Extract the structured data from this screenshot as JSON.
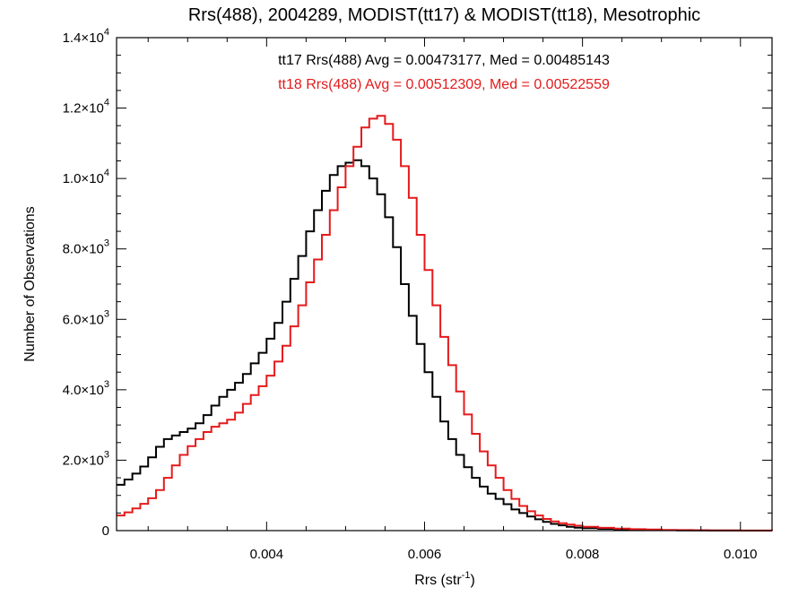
{
  "chart_data": {
    "type": "line",
    "title": "Rrs(488), 2004289, MODIST(tt17) & MODIST(tt18), Mesotrophic",
    "xlabel": "Rrs (str",
    "xlabel_sup": "-1",
    "xlabel_suffix": ")",
    "ylabel": "Number of Observations",
    "xlim": [
      0.0021,
      0.0104
    ],
    "ylim": [
      0,
      14000
    ],
    "grid": false,
    "x_ticks": [
      {
        "value": 0.004,
        "label": "0.004"
      },
      {
        "value": 0.006,
        "label": "0.006"
      },
      {
        "value": 0.008,
        "label": "0.008"
      },
      {
        "value": 0.01,
        "label": "0.010"
      }
    ],
    "y_ticks": [
      {
        "value": 0,
        "mant": "0",
        "exp": ""
      },
      {
        "value": 2000,
        "mant": "2.0×10",
        "exp": "3"
      },
      {
        "value": 4000,
        "mant": "4.0×10",
        "exp": "3"
      },
      {
        "value": 6000,
        "mant": "6.0×10",
        "exp": "3"
      },
      {
        "value": 8000,
        "mant": "8.0×10",
        "exp": "3"
      },
      {
        "value": 10000,
        "mant": "1.0×10",
        "exp": "4"
      },
      {
        "value": 12000,
        "mant": "1.2×10",
        "exp": "4"
      },
      {
        "value": 14000,
        "mant": "1.4×10",
        "exp": "4"
      }
    ],
    "annotations": [
      {
        "text": "tt17 Rrs(488) Avg = 0.00473177, Med = 0.00485143",
        "color": "#000000"
      },
      {
        "text": "tt18 Rrs(488) Avg = 0.00512309, Med = 0.00522559",
        "color": "#e41a1c"
      }
    ],
    "series": [
      {
        "color": "#000000",
        "x": [
          0.0021,
          0.0022,
          0.0023,
          0.0024,
          0.0025,
          0.0026,
          0.0027,
          0.0028,
          0.0029,
          0.003,
          0.0031,
          0.0032,
          0.0033,
          0.0034,
          0.0035,
          0.0036,
          0.0037,
          0.0038,
          0.0039,
          0.004,
          0.0041,
          0.0042,
          0.0043,
          0.0044,
          0.0045,
          0.0046,
          0.0047,
          0.0048,
          0.0049,
          0.005,
          0.0051,
          0.0052,
          0.0053,
          0.0054,
          0.0055,
          0.0056,
          0.0057,
          0.0058,
          0.0059,
          0.006,
          0.0061,
          0.0062,
          0.0063,
          0.0064,
          0.0065,
          0.0066,
          0.0067,
          0.0068,
          0.0069,
          0.007,
          0.0071,
          0.0072,
          0.0073,
          0.0074,
          0.0075,
          0.0076,
          0.0077,
          0.0078,
          0.0079,
          0.008,
          0.0082,
          0.0084,
          0.0086,
          0.0088,
          0.009,
          0.0092,
          0.0094,
          0.0096,
          0.0098,
          0.01,
          0.0102,
          0.0104
        ],
        "y": [
          1300,
          1450,
          1620,
          1820,
          2080,
          2380,
          2600,
          2700,
          2800,
          2900,
          3050,
          3280,
          3550,
          3800,
          4000,
          4200,
          4450,
          4750,
          5050,
          5450,
          5900,
          6500,
          7150,
          7800,
          8500,
          9100,
          9650,
          10100,
          10350,
          10450,
          10520,
          10350,
          10000,
          9550,
          8900,
          8050,
          7000,
          6100,
          5300,
          4500,
          3800,
          3100,
          2600,
          2150,
          1800,
          1500,
          1250,
          1050,
          900,
          750,
          600,
          500,
          400,
          320,
          250,
          190,
          150,
          110,
          85,
          70,
          50,
          35,
          25,
          18,
          12,
          8,
          5,
          3,
          2,
          1,
          1,
          0
        ]
      },
      {
        "color": "#e41a1c",
        "x": [
          0.0021,
          0.0022,
          0.0023,
          0.0024,
          0.0025,
          0.0026,
          0.0027,
          0.0028,
          0.0029,
          0.003,
          0.0031,
          0.0032,
          0.0033,
          0.0034,
          0.0035,
          0.0036,
          0.0037,
          0.0038,
          0.0039,
          0.004,
          0.0041,
          0.0042,
          0.0043,
          0.0044,
          0.0045,
          0.0046,
          0.0047,
          0.0048,
          0.0049,
          0.005,
          0.0051,
          0.0052,
          0.0053,
          0.0054,
          0.0055,
          0.0056,
          0.0057,
          0.0058,
          0.0059,
          0.006,
          0.0061,
          0.0062,
          0.0063,
          0.0064,
          0.0065,
          0.0066,
          0.0067,
          0.0068,
          0.0069,
          0.007,
          0.0071,
          0.0072,
          0.0073,
          0.0074,
          0.0075,
          0.0076,
          0.0077,
          0.0078,
          0.0079,
          0.008,
          0.0082,
          0.0084,
          0.0086,
          0.0088,
          0.009,
          0.0092,
          0.0094,
          0.0096,
          0.0098,
          0.01,
          0.0102,
          0.0104
        ],
        "y": [
          430,
          520,
          630,
          760,
          920,
          1150,
          1500,
          1850,
          2150,
          2400,
          2600,
          2800,
          2950,
          3050,
          3150,
          3350,
          3600,
          3850,
          4100,
          4400,
          4800,
          5250,
          5800,
          6400,
          7050,
          7700,
          8400,
          9100,
          9750,
          10350,
          10900,
          11450,
          11700,
          11780,
          11550,
          11100,
          10350,
          9450,
          8400,
          7400,
          6400,
          5500,
          4700,
          3950,
          3300,
          2750,
          2250,
          1850,
          1500,
          1150,
          900,
          700,
          550,
          430,
          330,
          260,
          210,
          170,
          140,
          110,
          80,
          55,
          40,
          30,
          20,
          15,
          10,
          6,
          4,
          3,
          2,
          1
        ]
      }
    ]
  }
}
